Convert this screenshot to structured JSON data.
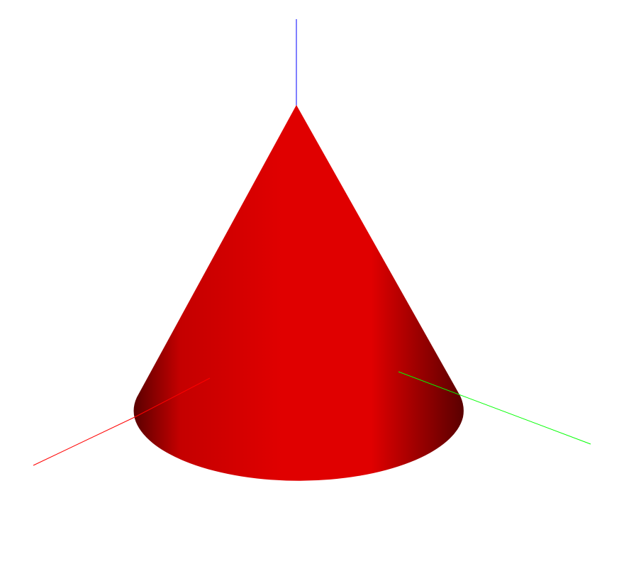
{
  "scene": {
    "background": "#ffffff",
    "object": {
      "shape": "cone",
      "color": "#e00000",
      "shade_dark": "#5a0000",
      "shade_mid": "#c40000"
    },
    "axes": {
      "x": {
        "color": "#ff0000"
      },
      "y": {
        "color": "#00ff00"
      },
      "z": {
        "color": "#0000ff"
      }
    }
  }
}
